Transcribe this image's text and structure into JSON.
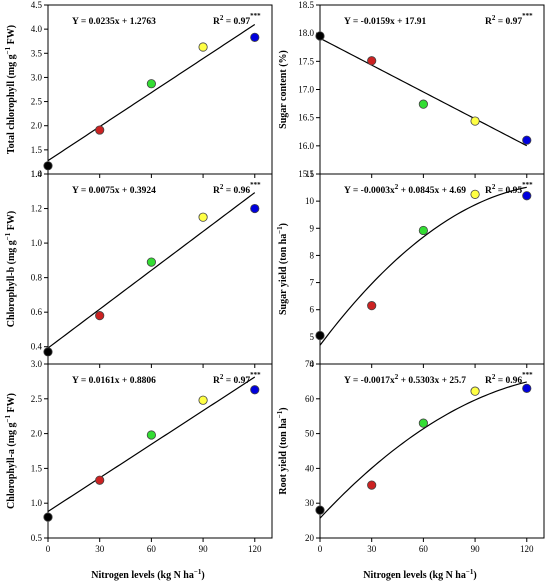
{
  "colors": {
    "point_fills": [
      "#000000",
      "#cc2222",
      "#33dd33",
      "#ffff44",
      "#0000dd"
    ],
    "point_stroke": "#444444",
    "line": "#000000"
  },
  "x_label_left": "Nitrogen levels (kg N ha",
  "x_label_right": "Nitrogen levels (kg N ha",
  "x_label_unit_sup": "−1",
  "x_label_close": ")",
  "chart_data": [
    {
      "id": "total_chlorophyll",
      "type": "scatter",
      "ylabel_main": "Total chlorophyll (mg g",
      "ylabel_sup": "−1",
      "ylabel_tail": " FW)",
      "x": [
        0,
        30,
        60,
        90,
        120
      ],
      "y": [
        1.17,
        1.91,
        2.87,
        3.63,
        3.83
      ],
      "xlim": [
        0,
        130
      ],
      "ylim": [
        1.0,
        4.5
      ],
      "yticks": [
        1.0,
        1.5,
        2.0,
        2.5,
        3.0,
        3.5,
        4.0,
        4.5
      ],
      "ytick_labels": [
        "1.0",
        "1.5",
        "2.0",
        "2.5",
        "3.0",
        "3.5",
        "4.0",
        "4.5"
      ],
      "xticks": [
        0,
        30,
        60,
        90,
        120
      ],
      "xtick_labels": [
        "0",
        "30",
        "60",
        "90",
        "120"
      ],
      "show_xticklabels": false,
      "fit": {
        "kind": "linear",
        "coef": [
          1.2763,
          0.0235
        ]
      },
      "equation": "Y = 0.0235x + 1.2763",
      "r2_label": "R",
      "r2_value": " = 0.97",
      "r2_sig": "***"
    },
    {
      "id": "sugar_content",
      "type": "scatter",
      "ylabel_main": "Sugar content (%)",
      "ylabel_sup": "",
      "ylabel_tail": "",
      "x": [
        0,
        30,
        60,
        90,
        120
      ],
      "y": [
        17.95,
        17.51,
        16.74,
        16.44,
        16.1
      ],
      "xlim": [
        0,
        130
      ],
      "ylim": [
        15.5,
        18.5
      ],
      "yticks": [
        15.5,
        16.0,
        16.5,
        17.0,
        17.5,
        18.0,
        18.5
      ],
      "ytick_labels": [
        "15.5",
        "16.0",
        "16.5",
        "17.0",
        "17.5",
        "18.0",
        "18.5"
      ],
      "xticks": [
        0,
        30,
        60,
        90,
        120
      ],
      "xtick_labels": [
        "0",
        "30",
        "60",
        "90",
        "120"
      ],
      "show_xticklabels": false,
      "fit": {
        "kind": "linear",
        "coef": [
          17.91,
          -0.0159
        ]
      },
      "equation": "Y = -0.0159x + 17.91",
      "r2_label": "R",
      "r2_value": " = 0.97",
      "r2_sig": "***"
    },
    {
      "id": "chlorophyll_b",
      "type": "scatter",
      "ylabel_main": "Chlorophyll-b (mg g",
      "ylabel_sup": "−1",
      "ylabel_tail": " FW)",
      "x": [
        0,
        30,
        60,
        90,
        120
      ],
      "y": [
        0.37,
        0.58,
        0.89,
        1.15,
        1.2
      ],
      "xlim": [
        0,
        130
      ],
      "ylim": [
        0.3,
        1.4
      ],
      "yticks": [
        0.4,
        0.6,
        0.8,
        1.0,
        1.2,
        1.4
      ],
      "ytick_labels": [
        "0.4",
        "0.6",
        "0.8",
        "1.0",
        "1.2",
        "1.4"
      ],
      "xticks": [
        0,
        30,
        60,
        90,
        120
      ],
      "xtick_labels": [
        "0",
        "30",
        "60",
        "90",
        "120"
      ],
      "show_xticklabels": false,
      "fit": {
        "kind": "linear",
        "coef": [
          0.3924,
          0.0075
        ]
      },
      "equation": "Y = 0.0075x + 0.3924",
      "r2_label": "R",
      "r2_value": " = 0.96",
      "r2_sig": "***"
    },
    {
      "id": "sugar_yield",
      "type": "scatter",
      "ylabel_main": "Sugar yield (ton ha",
      "ylabel_sup": "−1",
      "ylabel_tail": ")",
      "x": [
        0,
        30,
        60,
        90,
        120
      ],
      "y": [
        5.05,
        6.15,
        8.92,
        10.25,
        10.2
      ],
      "xlim": [
        0,
        130
      ],
      "ylim": [
        4,
        11
      ],
      "yticks": [
        4,
        5,
        6,
        7,
        8,
        9,
        10,
        11
      ],
      "ytick_labels": [
        "4",
        "5",
        "6",
        "7",
        "8",
        "9",
        "10",
        "11"
      ],
      "xticks": [
        0,
        30,
        60,
        90,
        120
      ],
      "xtick_labels": [
        "0",
        "30",
        "60",
        "90",
        "120"
      ],
      "show_xticklabels": false,
      "fit": {
        "kind": "quadratic",
        "coef": [
          4.69,
          0.0845,
          -0.0003
        ]
      },
      "equation": "Y = -0.0003x",
      "equation_sup": "2",
      "equation_rest": " + 0.0845x + 4.69",
      "r2_label": "R",
      "r2_value": " = 0.95",
      "r2_sig": "***"
    },
    {
      "id": "chlorophyll_a",
      "type": "scatter",
      "ylabel_main": "Chlorophyll-a (mg g",
      "ylabel_sup": "−1",
      "ylabel_tail": " FW)",
      "x": [
        0,
        30,
        60,
        90,
        120
      ],
      "y": [
        0.8,
        1.33,
        1.98,
        2.48,
        2.63
      ],
      "xlim": [
        0,
        130
      ],
      "ylim": [
        0.5,
        3.0
      ],
      "yticks": [
        0.5,
        1.0,
        1.5,
        2.0,
        2.5,
        3.0
      ],
      "ytick_labels": [
        "0.5",
        "1.0",
        "1.5",
        "2.0",
        "2.5",
        "3.0"
      ],
      "xticks": [
        0,
        30,
        60,
        90,
        120
      ],
      "xtick_labels": [
        "0",
        "30",
        "60",
        "90",
        "120"
      ],
      "show_xticklabels": true,
      "fit": {
        "kind": "linear",
        "coef": [
          0.8806,
          0.0161
        ]
      },
      "equation": "Y = 0.0161x + 0.8806",
      "r2_label": "R",
      "r2_value": " = 0.97",
      "r2_sig": "***"
    },
    {
      "id": "root_yield",
      "type": "scatter",
      "ylabel_main": "Root yield (ton ha",
      "ylabel_sup": "−1",
      "ylabel_tail": ")",
      "x": [
        0,
        30,
        60,
        90,
        120
      ],
      "y": [
        28.0,
        35.2,
        53.0,
        62.2,
        63.0
      ],
      "xlim": [
        0,
        130
      ],
      "ylim": [
        20,
        70
      ],
      "yticks": [
        20,
        30,
        40,
        50,
        60,
        70
      ],
      "ytick_labels": [
        "20",
        "30",
        "40",
        "50",
        "60",
        "70"
      ],
      "xticks": [
        0,
        30,
        60,
        90,
        120
      ],
      "xtick_labels": [
        "0",
        "30",
        "60",
        "90",
        "120"
      ],
      "show_xticklabels": true,
      "fit": {
        "kind": "quadratic",
        "coef": [
          25.7,
          0.5303,
          -0.0017
        ]
      },
      "equation": "Y = -0.0017x",
      "equation_sup": "2",
      "equation_rest": " + 0.5303x + 25.7",
      "r2_label": "R",
      "r2_value": " = 0.96",
      "r2_sig": "***"
    }
  ]
}
